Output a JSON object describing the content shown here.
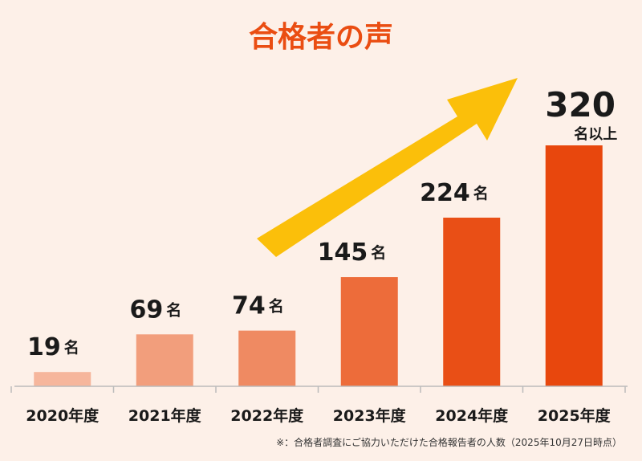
{
  "chart_data": {
    "type": "bar",
    "title": "合格者の声",
    "categories": [
      "2020年度",
      "2021年度",
      "2022年度",
      "2023年度",
      "2024年度",
      "2025年度"
    ],
    "values": [
      19,
      69,
      74,
      145,
      224,
      320
    ],
    "value_labels": [
      "19",
      "69",
      "74",
      "145",
      "224",
      "320"
    ],
    "unit_labels": [
      "名",
      "名",
      "名",
      "名",
      "名",
      "名以上"
    ],
    "ylim": [
      0,
      340
    ],
    "xlabel": "",
    "ylabel": "",
    "grid": false,
    "trend_arrow": true,
    "note": "※：合格者調査にご協力いただけた合格報告者の人数（2025年10月27日時点）"
  },
  "colors": {
    "background": "#fdf0e8",
    "title": "#ea4d12",
    "arrow": "#fbbf0a",
    "axis": "#bbbbbb",
    "bars": [
      "#f6b69c",
      "#f29e7c",
      "#ef8a62",
      "#ed6c3a",
      "#e94f16",
      "#e8470d"
    ]
  }
}
